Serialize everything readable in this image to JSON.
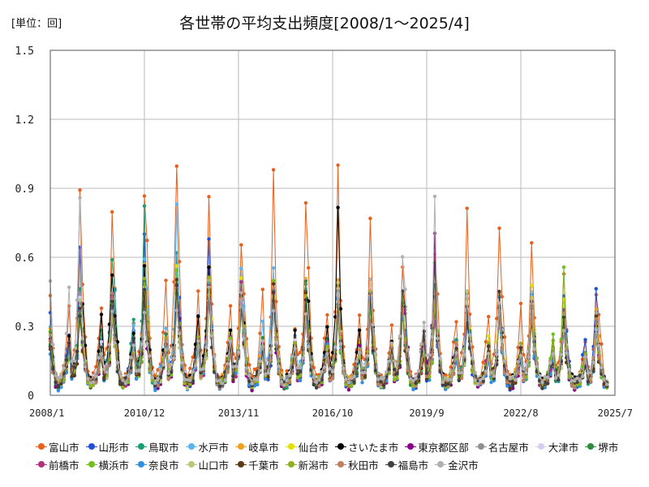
{
  "unit_label": "[単位：回]",
  "chart_data": {
    "type": "line",
    "title": "各世帯の平均支出頻度[2008/1～2025/4]",
    "xlabel": "",
    "ylabel": "",
    "ylim": [
      0,
      1.5
    ],
    "yticks": [
      "0",
      "0.3",
      "0.6",
      "0.9",
      "1.2",
      "1.5"
    ],
    "x_start": "2008/1",
    "x_end": "2025/7",
    "data_start": "2008/1",
    "data_end": "2025/4",
    "xticks": [
      "2008/1",
      "2010/12",
      "2013/11",
      "2016/10",
      "2019/9",
      "2022/8",
      "2025/7"
    ],
    "grid": true,
    "legend_position": "bottom",
    "seasonal_pattern_note": "",
    "series": [
      {
        "name": "富山市",
        "color": "#E8601C",
        "base": 0.07,
        "peak": 0.62,
        "peak_years": [
          0.88,
          0.85,
          0.8,
          1.13,
          0.94,
          0.78,
          0.91,
          0.77,
          0.91,
          0.85,
          0.6,
          0.6,
          0.77,
          0.72,
          0.78,
          0.52,
          0.4,
          0.64
        ]
      },
      {
        "name": "山形市",
        "color": "#1F4FD8",
        "base": 0.04,
        "peak": 0.45,
        "peak_years": [
          0.63,
          0.45,
          0.7,
          0.58,
          0.75,
          0.45,
          0.4,
          0.45,
          0.48,
          0.4,
          0.42,
          0.45,
          0.5,
          0.4,
          0.45,
          0.4,
          0.53,
          0.42
        ]
      },
      {
        "name": "鳥取市",
        "color": "#1A9E77",
        "base": 0.04,
        "peak": 0.48,
        "peak_years": [
          0.5,
          0.6,
          0.93,
          0.55,
          0.55,
          0.5,
          0.45,
          0.45,
          0.45,
          0.4,
          0.4,
          0.45,
          0.45,
          0.4,
          0.4,
          0.35,
          0.3,
          0.3
        ]
      },
      {
        "name": "水戸市",
        "color": "#5AB4F0",
        "base": 0.05,
        "peak": 0.45,
        "peak_years": [
          0.45,
          0.45,
          0.6,
          0.8,
          0.6,
          0.5,
          0.7,
          0.55,
          0.5,
          0.45,
          0.45,
          0.45,
          0.45,
          0.4,
          0.4,
          0.35,
          0.35,
          0.35
        ]
      },
      {
        "name": "岐阜市",
        "color": "#F0A020",
        "base": 0.06,
        "peak": 0.45,
        "peak_years": [
          0.45,
          0.45,
          0.55,
          0.6,
          0.55,
          0.5,
          0.45,
          0.45,
          0.45,
          0.45,
          0.45,
          0.45,
          0.42,
          0.45,
          0.48,
          0.4,
          0.35,
          0.38
        ]
      },
      {
        "name": "仙台市",
        "color": "#E6E000",
        "base": 0.05,
        "peak": 0.42,
        "peak_years": [
          0.4,
          0.4,
          0.45,
          0.5,
          0.5,
          0.5,
          0.45,
          0.4,
          0.4,
          0.4,
          0.4,
          0.4,
          0.4,
          0.47,
          0.45,
          0.4,
          0.3,
          0.3
        ]
      },
      {
        "name": "さいたま市",
        "color": "#000000",
        "base": 0.06,
        "peak": 0.48,
        "peak_years": [
          0.45,
          0.66,
          0.7,
          0.55,
          0.7,
          0.5,
          0.5,
          0.5,
          0.74,
          0.56,
          0.45,
          0.5,
          0.45,
          0.4,
          0.4,
          0.35,
          0.35,
          0.33
        ]
      },
      {
        "name": "東京都区部",
        "color": "#8B008B",
        "base": 0.04,
        "peak": 0.42,
        "peak_years": [
          0.4,
          0.4,
          0.45,
          0.45,
          0.5,
          0.45,
          0.4,
          0.4,
          0.4,
          0.4,
          0.4,
          0.68,
          0.4,
          0.4,
          0.4,
          0.35,
          0.3,
          0.28
        ]
      },
      {
        "name": "名古屋市",
        "color": "#909090",
        "base": 0.05,
        "peak": 0.42,
        "peak_years": [
          0.4,
          0.4,
          0.45,
          0.45,
          0.5,
          0.45,
          0.4,
          0.5,
          0.4,
          0.4,
          0.4,
          0.4,
          0.4,
          0.4,
          0.4,
          0.35,
          0.3,
          0.3
        ]
      },
      {
        "name": "大津市",
        "color": "#D8CCF0",
        "base": 0.06,
        "peak": 0.4,
        "peak_years": [
          0.4,
          0.4,
          0.4,
          0.45,
          0.45,
          0.45,
          0.4,
          0.45,
          0.4,
          0.4,
          0.4,
          0.4,
          0.4,
          0.4,
          0.4,
          0.35,
          0.3,
          0.3
        ]
      },
      {
        "name": "堺市",
        "color": "#2E8B3E",
        "base": 0.05,
        "peak": 0.42,
        "peak_years": [
          0.4,
          0.45,
          0.5,
          0.5,
          0.5,
          0.45,
          0.45,
          0.45,
          0.45,
          0.4,
          0.4,
          0.4,
          0.4,
          0.4,
          0.4,
          0.35,
          0.3,
          0.3
        ]
      },
      {
        "name": "前橋市",
        "color": "#B03080",
        "base": 0.05,
        "peak": 0.42,
        "peak_years": [
          0.4,
          0.4,
          0.45,
          0.45,
          0.5,
          0.45,
          0.45,
          0.4,
          0.4,
          0.4,
          0.4,
          0.4,
          0.4,
          0.4,
          0.4,
          0.35,
          0.3,
          0.3
        ]
      },
      {
        "name": "横浜市",
        "color": "#70C020",
        "base": 0.05,
        "peak": 0.42,
        "peak_years": [
          0.4,
          0.4,
          0.45,
          0.5,
          0.5,
          0.45,
          0.45,
          0.4,
          0.4,
          0.4,
          0.4,
          0.4,
          0.4,
          0.4,
          0.4,
          0.52,
          0.3,
          0.3
        ]
      },
      {
        "name": "奈良市",
        "color": "#3090E0",
        "base": 0.04,
        "peak": 0.42,
        "peak_years": [
          0.4,
          0.4,
          0.45,
          0.45,
          0.5,
          0.45,
          0.45,
          0.4,
          0.4,
          0.4,
          0.4,
          0.4,
          0.4,
          0.4,
          0.4,
          0.35,
          0.3,
          0.3
        ]
      },
      {
        "name": "山口市",
        "color": "#B8C878",
        "base": 0.05,
        "peak": 0.4,
        "peak_years": [
          0.4,
          0.4,
          0.45,
          0.45,
          0.45,
          0.45,
          0.4,
          0.4,
          0.4,
          0.4,
          0.4,
          0.4,
          0.4,
          0.4,
          0.4,
          0.35,
          0.3,
          0.3
        ]
      },
      {
        "name": "千葉市",
        "color": "#5A3A10",
        "base": 0.05,
        "peak": 0.42,
        "peak_years": [
          0.4,
          0.4,
          0.45,
          0.45,
          0.5,
          0.45,
          0.45,
          0.4,
          0.4,
          0.4,
          0.4,
          0.4,
          0.4,
          0.4,
          0.4,
          0.35,
          0.3,
          0.3
        ]
      },
      {
        "name": "新潟市",
        "color": "#90B020",
        "base": 0.05,
        "peak": 0.42,
        "peak_years": [
          0.4,
          0.4,
          0.45,
          0.45,
          0.5,
          0.45,
          0.45,
          0.4,
          0.4,
          0.4,
          0.4,
          0.4,
          0.4,
          0.4,
          0.4,
          0.35,
          0.3,
          0.3
        ]
      },
      {
        "name": "秋田市",
        "color": "#C08060",
        "base": 0.05,
        "peak": 0.42,
        "peak_years": [
          0.4,
          0.4,
          0.45,
          0.45,
          0.5,
          0.45,
          0.45,
          0.4,
          0.4,
          0.4,
          0.4,
          0.4,
          0.4,
          0.4,
          0.4,
          0.35,
          0.3,
          0.3
        ]
      },
      {
        "name": "福島市",
        "color": "#404040",
        "base": 0.05,
        "peak": 0.42,
        "peak_years": [
          0.4,
          0.4,
          0.45,
          0.45,
          0.5,
          0.45,
          0.45,
          0.4,
          0.4,
          0.4,
          0.4,
          0.69,
          0.4,
          0.4,
          0.4,
          0.35,
          0.3,
          0.3
        ]
      },
      {
        "name": "金沢市",
        "color": "#B0B0B0",
        "base": 0.06,
        "peak": 0.45,
        "peak_years": [
          0.94,
          0.45,
          0.45,
          0.45,
          0.5,
          0.45,
          0.45,
          0.45,
          0.45,
          0.45,
          0.61,
          0.78,
          0.45,
          0.4,
          0.4,
          0.35,
          0.3,
          0.3
        ]
      }
    ]
  }
}
